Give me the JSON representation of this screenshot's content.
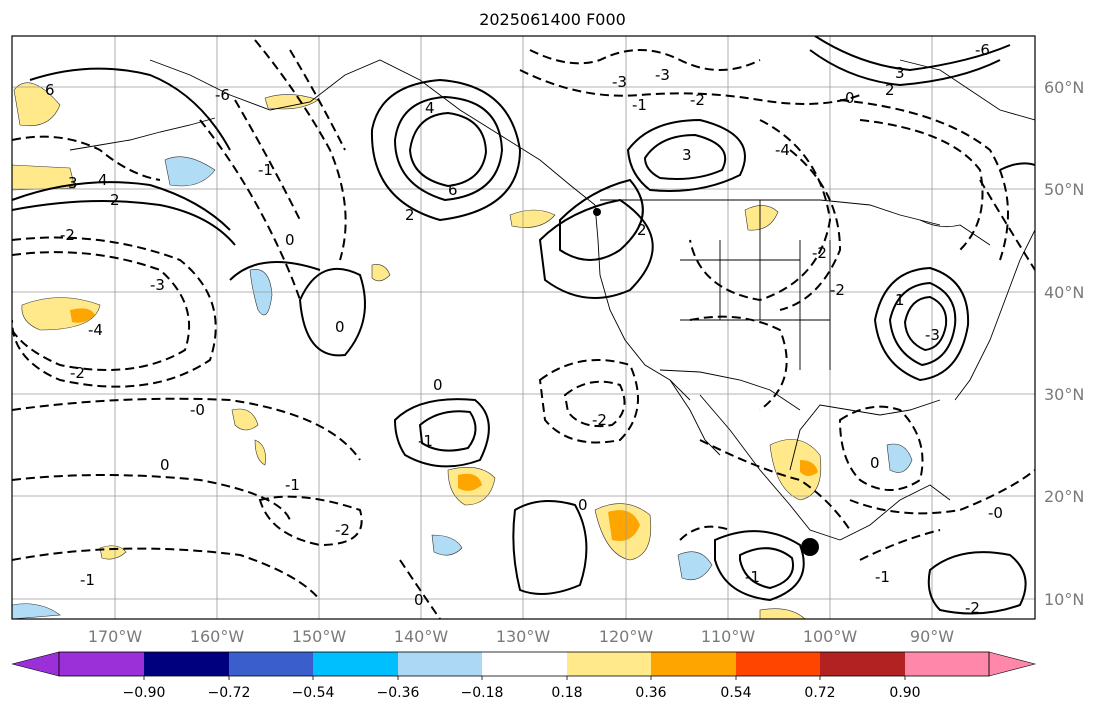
{
  "title": "2025061400 F000",
  "map": {
    "lon_labels": [
      "170°W",
      "160°W",
      "150°W",
      "140°W",
      "130°W",
      "120°W",
      "110°W",
      "100°W",
      "90°W"
    ],
    "lat_labels": [
      "60°N",
      "50°N",
      "40°N",
      "30°N",
      "20°N",
      "10°N"
    ],
    "contour_labels": [
      "6",
      "4",
      "2",
      "-2",
      "-3",
      "-4",
      "-6",
      "0",
      "-1",
      "-2",
      "3",
      "6",
      "4",
      "2",
      "-3",
      "3",
      "-1",
      "2",
      "-2",
      "-3",
      "-4",
      "-2",
      "-0",
      "-1",
      "-2",
      "0",
      "0",
      "-1",
      "0",
      "0",
      "-2",
      "-0",
      "-1",
      "0",
      "-1",
      "-2",
      "3",
      "-6",
      "0",
      "2",
      "-3",
      "1",
      "0",
      "-1",
      "-2"
    ],
    "colors": {
      "land_border": "#000000",
      "grid": "#9a9a9a",
      "contour": "#000000",
      "shade_positive_1": "#ffe98a",
      "shade_positive_2": "#ffa500",
      "shade_negative_1": "#b0dcf5",
      "shade_negative_2": "#1ab8ee"
    }
  },
  "colorbar": {
    "ticks": [
      "−0.90",
      "−0.72",
      "−0.54",
      "−0.36",
      "−0.18",
      "0.18",
      "0.36",
      "0.54",
      "0.72",
      "0.90"
    ],
    "colors": [
      "#9b30d9",
      "#00007f",
      "#3a5fcd",
      "#00bfff",
      "#add8f5",
      "#ffffff",
      "#ffe98a",
      "#ffa500",
      "#ff4500",
      "#b22222",
      "#ff88aa"
    ]
  }
}
